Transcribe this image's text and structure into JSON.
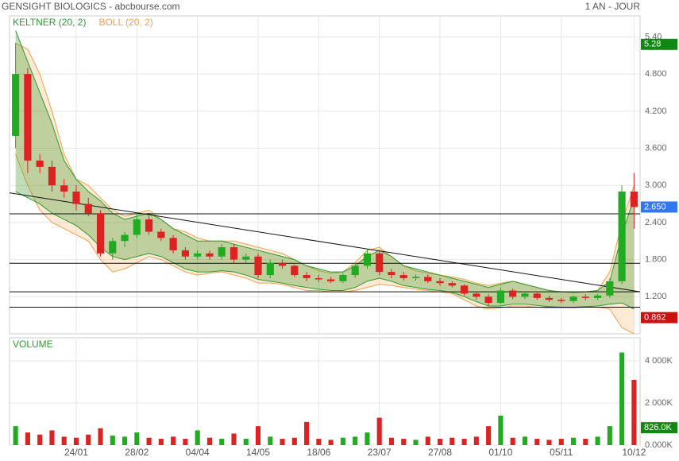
{
  "chart_data": [
    {
      "type": "candlestick",
      "title": "GENSIGHT BIOLOGICS - abcbourse.com",
      "subtitle": "1 AN - JOUR",
      "categories": [
        null,
        null,
        null,
        null,
        null,
        "24/01",
        null,
        null,
        null,
        null,
        "28/02",
        null,
        null,
        null,
        null,
        "04/04",
        null,
        null,
        null,
        null,
        "14/05",
        null,
        null,
        null,
        null,
        "18/06",
        null,
        null,
        null,
        null,
        "23/07",
        null,
        null,
        null,
        null,
        "27/08",
        null,
        null,
        null,
        null,
        "01/10",
        null,
        null,
        null,
        null,
        "05/11",
        null,
        null,
        null,
        null,
        null,
        "10/12"
      ],
      "open": [
        3.8,
        4.8,
        3.4,
        3.3,
        3.0,
        2.9,
        2.7,
        2.55,
        1.9,
        2.1,
        2.2,
        2.45,
        2.25,
        2.15,
        1.95,
        1.85,
        1.9,
        1.85,
        2.0,
        1.8,
        1.85,
        1.55,
        1.75,
        1.7,
        1.55,
        1.5,
        1.48,
        1.45,
        1.55,
        1.7,
        1.9,
        1.6,
        1.55,
        1.5,
        1.52,
        1.45,
        1.42,
        1.38,
        1.25,
        1.2,
        1.1,
        1.3,
        1.2,
        1.25,
        1.18,
        1.15,
        1.13,
        1.2,
        1.18,
        1.22,
        1.45,
        2.9
      ],
      "high": [
        5.3,
        4.9,
        3.5,
        3.4,
        3.1,
        3.0,
        2.8,
        2.6,
        2.15,
        2.25,
        2.55,
        2.5,
        2.3,
        2.2,
        2.0,
        1.95,
        1.95,
        2.05,
        2.05,
        1.9,
        1.9,
        1.8,
        1.8,
        1.72,
        1.6,
        1.55,
        1.52,
        1.58,
        1.75,
        1.98,
        1.95,
        1.65,
        1.6,
        1.56,
        1.56,
        1.5,
        1.45,
        1.4,
        1.28,
        1.24,
        1.35,
        1.33,
        1.28,
        1.28,
        1.22,
        1.18,
        1.22,
        1.24,
        1.24,
        1.5,
        3.0,
        3.2
      ],
      "low": [
        3.6,
        3.2,
        3.2,
        2.9,
        2.8,
        2.6,
        2.5,
        1.85,
        1.8,
        2.0,
        2.15,
        2.2,
        2.1,
        1.9,
        1.8,
        1.8,
        1.8,
        1.8,
        1.75,
        1.75,
        1.5,
        1.5,
        1.65,
        1.52,
        1.45,
        1.44,
        1.42,
        1.42,
        1.5,
        1.65,
        1.55,
        1.5,
        1.46,
        1.46,
        1.42,
        1.38,
        1.35,
        1.22,
        1.15,
        1.05,
        1.08,
        1.16,
        1.16,
        1.15,
        1.12,
        1.1,
        1.1,
        1.14,
        1.15,
        1.18,
        1.4,
        2.3
      ],
      "close": [
        4.8,
        3.4,
        3.3,
        3.0,
        2.9,
        2.7,
        2.55,
        1.9,
        2.1,
        2.2,
        2.45,
        2.25,
        2.15,
        1.95,
        1.85,
        1.9,
        1.85,
        2.0,
        1.8,
        1.85,
        1.55,
        1.75,
        1.7,
        1.55,
        1.5,
        1.48,
        1.45,
        1.55,
        1.7,
        1.9,
        1.6,
        1.55,
        1.5,
        1.52,
        1.45,
        1.42,
        1.38,
        1.25,
        1.2,
        1.1,
        1.3,
        1.2,
        1.25,
        1.18,
        1.15,
        1.13,
        1.2,
        1.18,
        1.22,
        1.45,
        2.9,
        2.65
      ],
      "up_color": "#22aa22",
      "down_color": "#dd2222",
      "bands": [
        {
          "name": "KELTNER (20, 2)",
          "color": "#2e9a2e",
          "fill": "rgba(60,150,40,0.32)",
          "upper": [
            5.5,
            5.0,
            4.5,
            4.0,
            3.4,
            3.1,
            2.9,
            2.75,
            2.55,
            2.45,
            2.5,
            2.55,
            2.45,
            2.3,
            2.2,
            2.1,
            2.1,
            2.1,
            2.05,
            2.0,
            1.95,
            1.9,
            1.85,
            1.8,
            1.7,
            1.65,
            1.6,
            1.6,
            1.7,
            1.85,
            1.95,
            1.85,
            1.7,
            1.65,
            1.6,
            1.55,
            1.5,
            1.45,
            1.4,
            1.35,
            1.4,
            1.45,
            1.4,
            1.35,
            1.3,
            1.28,
            1.27,
            1.28,
            1.3,
            1.45,
            2.2,
            2.8
          ],
          "lower": [
            2.9,
            2.8,
            2.7,
            2.55,
            2.45,
            2.35,
            2.2,
            2.0,
            1.85,
            1.8,
            1.85,
            1.9,
            1.85,
            1.75,
            1.65,
            1.6,
            1.6,
            1.62,
            1.6,
            1.55,
            1.48,
            1.45,
            1.42,
            1.38,
            1.35,
            1.32,
            1.3,
            1.3,
            1.35,
            1.45,
            1.5,
            1.45,
            1.38,
            1.35,
            1.32,
            1.3,
            1.27,
            1.2,
            1.12,
            1.05,
            1.05,
            1.08,
            1.08,
            1.06,
            1.04,
            1.03,
            1.03,
            1.04,
            1.05,
            1.08,
            1.1,
            1.0
          ]
        },
        {
          "name": "BOLL (20, 2)",
          "color": "#f0a050",
          "fill": "rgba(255,170,90,0.25)",
          "upper": [
            5.3,
            5.2,
            4.8,
            4.2,
            3.5,
            3.1,
            3.0,
            2.8,
            2.6,
            2.5,
            2.55,
            2.6,
            2.45,
            2.3,
            2.25,
            2.15,
            2.1,
            2.1,
            2.1,
            2.05,
            2.0,
            1.95,
            1.9,
            1.8,
            1.7,
            1.62,
            1.58,
            1.6,
            1.75,
            1.95,
            2.0,
            1.85,
            1.7,
            1.62,
            1.58,
            1.55,
            1.52,
            1.48,
            1.42,
            1.38,
            1.42,
            1.45,
            1.4,
            1.35,
            1.3,
            1.28,
            1.27,
            1.28,
            1.3,
            1.6,
            2.4,
            3.0
          ],
          "lower": [
            3.5,
            3.0,
            2.6,
            2.4,
            2.3,
            2.2,
            2.1,
            1.8,
            1.6,
            1.65,
            1.75,
            1.85,
            1.8,
            1.7,
            1.6,
            1.55,
            1.58,
            1.6,
            1.55,
            1.5,
            1.42,
            1.42,
            1.4,
            1.35,
            1.3,
            1.3,
            1.28,
            1.28,
            1.3,
            1.35,
            1.4,
            1.38,
            1.35,
            1.32,
            1.3,
            1.28,
            1.25,
            1.15,
            1.05,
            1.0,
            1.02,
            1.05,
            1.05,
            1.03,
            1.02,
            1.02,
            1.02,
            1.03,
            1.03,
            1.0,
            0.7,
            0.6
          ]
        }
      ],
      "hlines": [
        2.54,
        1.74,
        1.28,
        1.03
      ],
      "trendline": [
        2.88,
        1.28
      ],
      "ylim": [
        0.6,
        5.74
      ],
      "yticks": [
        {
          "value": 5.4,
          "label": "5.40"
        },
        {
          "value": 4.8,
          "label": "4.800"
        },
        {
          "value": 4.2,
          "label": "4.200"
        },
        {
          "value": 3.6,
          "label": "3.600"
        },
        {
          "value": 3.0,
          "label": "3.000"
        },
        {
          "value": 2.4,
          "label": "2.400"
        },
        {
          "value": 1.8,
          "label": "1.800"
        },
        {
          "value": 1.2,
          "label": "1.200"
        }
      ],
      "price_labels": [
        {
          "value": 5.28,
          "label": "5.28",
          "color": "#118811"
        },
        {
          "value": 2.65,
          "label": "2.650",
          "color": "#3377ee"
        },
        {
          "value": 0.862,
          "label": "0.862",
          "color": "#cc1111"
        }
      ],
      "grid": true
    },
    {
      "type": "bar",
      "title": "VOLUME",
      "values": [
        900,
        600,
        500,
        700,
        400,
        350,
        500,
        800,
        450,
        400,
        600,
        350,
        300,
        400,
        300,
        700,
        350,
        300,
        550,
        300,
        900,
        400,
        300,
        350,
        1100,
        300,
        250,
        350,
        400,
        600,
        1300,
        350,
        300,
        250,
        400,
        300,
        350,
        300,
        400,
        900,
        1400,
        350,
        400,
        300,
        250,
        300,
        350,
        300,
        400,
        900,
        4400,
        3100
      ],
      "ylim": [
        0,
        5100
      ],
      "yticks": [
        {
          "value": 4000,
          "label": "4 000K"
        },
        {
          "value": 2000,
          "label": "2 000K"
        },
        {
          "value": 0,
          "label": "0.000K"
        }
      ],
      "value_label": {
        "value": 826,
        "label": "826.0K",
        "color": "#118811"
      },
      "grid": true
    }
  ]
}
